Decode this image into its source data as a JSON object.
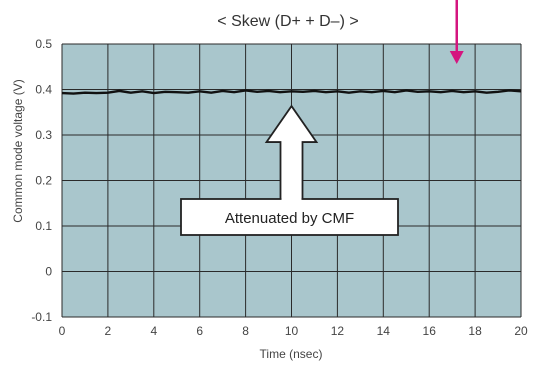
{
  "colors": {
    "plot_bg": "#a9c6cc",
    "grid": "#2a2a2a",
    "series": "#111111",
    "marker_arrow": "#d4157f",
    "callout_fill": "#ffffff",
    "callout_stroke": "#222222"
  },
  "chart_data": {
    "type": "line",
    "title": "< Skew (D+ + D–) >",
    "xlabel": "Time (nsec)",
    "ylabel": "Common mode voltage (V)",
    "xlim": [
      0,
      20
    ],
    "ylim": [
      -0.1,
      0.5
    ],
    "xticks": [
      "0",
      "2",
      "4",
      "6",
      "8",
      "10",
      "12",
      "14",
      "16",
      "18",
      "20"
    ],
    "yticks": [
      "-0.1",
      "0",
      "0.1",
      "0.2",
      "0.3",
      "0.4",
      "0.5"
    ],
    "grid": true,
    "series": [
      {
        "x": [
          0,
          0.5,
          1,
          1.5,
          2,
          2.5,
          3,
          3.5,
          4,
          4.5,
          5,
          5.5,
          6,
          6.5,
          7,
          7.5,
          8,
          8.5,
          9,
          9.5,
          10,
          10.5,
          11,
          11.5,
          12,
          12.5,
          13,
          13.5,
          14,
          14.5,
          15,
          15.5,
          16,
          16.5,
          17,
          17.5,
          18,
          18.5,
          19,
          19.5,
          20
        ],
        "y": [
          0.392,
          0.391,
          0.393,
          0.392,
          0.393,
          0.397,
          0.393,
          0.396,
          0.392,
          0.395,
          0.394,
          0.393,
          0.396,
          0.393,
          0.397,
          0.394,
          0.398,
          0.395,
          0.397,
          0.394,
          0.396,
          0.395,
          0.397,
          0.394,
          0.396,
          0.393,
          0.396,
          0.394,
          0.397,
          0.394,
          0.398,
          0.395,
          0.396,
          0.394,
          0.397,
          0.394,
          0.396,
          0.393,
          0.395,
          0.398,
          0.396
        ]
      }
    ],
    "annotation": {
      "text": "Attenuated by CMF",
      "points_to": [
        10,
        0.39
      ]
    },
    "marker": {
      "points_to": [
        17.2,
        0.5
      ]
    }
  }
}
